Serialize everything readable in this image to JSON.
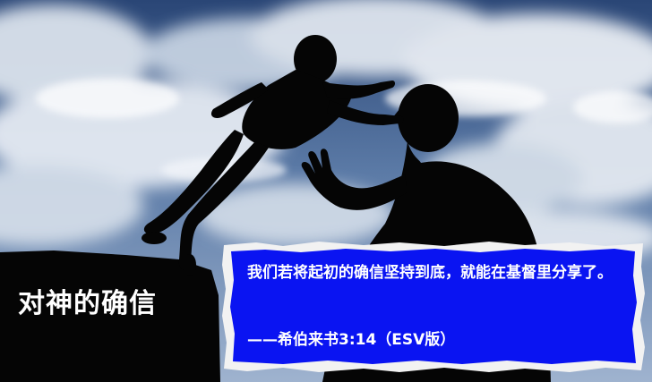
{
  "title": "对神的确信",
  "quote": {
    "text": "我们若将起初的确信坚持到底，就能在基督里分享了。",
    "reference": "——希伯来书3:14（ESV版）"
  },
  "colors": {
    "sky_top": "#2f4c7c",
    "cloud": "#e6ebf2",
    "silhouette": "#050505",
    "card_blue": "#0a14f2",
    "torn_edge": "#f2f2f2",
    "text": "#ffffff"
  }
}
